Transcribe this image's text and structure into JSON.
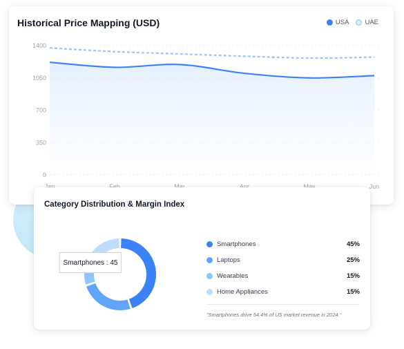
{
  "price_card": {
    "title": "Historical Price Mapping (USD)",
    "legend": [
      {
        "label": "USA",
        "color": "#3b82f6"
      },
      {
        "label": "UAE",
        "color": "#93c5fd"
      }
    ]
  },
  "chart_data": {
    "type": "line",
    "categories": [
      "Jan",
      "Feb",
      "Mar",
      "Apr",
      "May",
      "Jun"
    ],
    "yticks": [
      0,
      350,
      700,
      1050,
      1400
    ],
    "ylim": [
      0,
      1400
    ],
    "grid": true,
    "legend_position": "top-right",
    "series": [
      {
        "name": "USA",
        "values": [
          1220,
          1165,
          1195,
          1100,
          1050,
          1075
        ],
        "color": "#3b82f6",
        "style": "solid",
        "area": true
      },
      {
        "name": "UAE",
        "values": [
          1375,
          1335,
          1310,
          1285,
          1265,
          1275
        ],
        "color": "#93c5fd",
        "style": "dashed"
      }
    ]
  },
  "category_card": {
    "title": "Category Distribution & Margin Index",
    "tooltip": "Smartphones : 45",
    "items": [
      {
        "label": "Smartphones",
        "value": 45,
        "pct_label": "45%",
        "color": "#3b82f6"
      },
      {
        "label": "Laptops",
        "value": 25,
        "pct_label": "25%",
        "color": "#60a5fa"
      },
      {
        "label": "Wearables",
        "value": 15,
        "pct_label": "15%",
        "color": "#93c5fd"
      },
      {
        "label": "Home Appliances",
        "value": 15,
        "pct_label": "15%",
        "color": "#bfdbfe"
      }
    ],
    "note": "\"Smartphones drive 54.4% of US market revenue in 2024.\""
  }
}
